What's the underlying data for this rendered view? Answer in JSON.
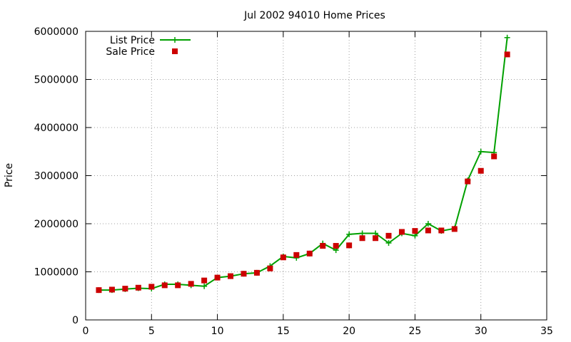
{
  "chart_data": {
    "type": "line",
    "title": "Jul 2002 94010 Home Prices",
    "xlabel": "",
    "ylabel": "Price",
    "xlim": [
      0,
      35
    ],
    "ylim": [
      0,
      6000000
    ],
    "x_ticks": [
      "0",
      "5",
      "10",
      "15",
      "20",
      "25",
      "30",
      "35"
    ],
    "y_ticks": [
      "0",
      "1000000",
      "2000000",
      "3000000",
      "4000000",
      "5000000",
      "6000000"
    ],
    "grid": true,
    "legend_position": "top-left",
    "x": [
      1,
      2,
      3,
      4,
      5,
      6,
      7,
      8,
      9,
      10,
      11,
      12,
      13,
      14,
      15,
      16,
      17,
      18,
      19,
      20,
      21,
      22,
      23,
      24,
      25,
      26,
      27,
      28,
      29,
      30,
      31,
      32
    ],
    "series": [
      {
        "name": "List Price",
        "style": "line-plus",
        "color": "#00a000",
        "values": [
          620000,
          620000,
          640000,
          660000,
          650000,
          740000,
          740000,
          720000,
          700000,
          880000,
          910000,
          960000,
          980000,
          1120000,
          1320000,
          1290000,
          1380000,
          1590000,
          1450000,
          1780000,
          1800000,
          1800000,
          1600000,
          1800000,
          1750000,
          2000000,
          1850000,
          1900000,
          2900000,
          3500000,
          3480000,
          5870000
        ]
      },
      {
        "name": "Sale Price",
        "style": "points-square",
        "color": "#cc0000",
        "values": [
          620000,
          630000,
          650000,
          670000,
          690000,
          720000,
          720000,
          750000,
          820000,
          880000,
          910000,
          960000,
          980000,
          1070000,
          1300000,
          1350000,
          1380000,
          1540000,
          1540000,
          1550000,
          1700000,
          1700000,
          1750000,
          1830000,
          1850000,
          1860000,
          1860000,
          1890000,
          2880000,
          3100000,
          3400000,
          5520000
        ]
      }
    ]
  }
}
